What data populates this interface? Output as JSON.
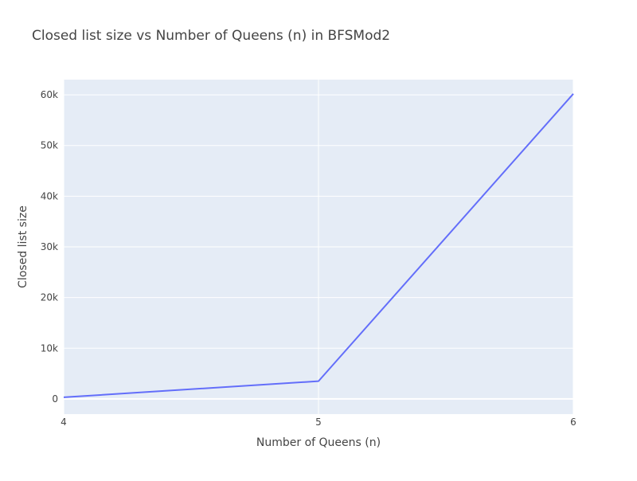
{
  "chart_data": {
    "type": "line",
    "title": "Closed list size vs Number of Queens (n) in BFSMod2",
    "xlabel": "Number of Queens (n)",
    "ylabel": "Closed list size",
    "x": [
      4,
      5,
      6
    ],
    "series": [
      {
        "values": [
          320,
          3500,
          60200
        ]
      }
    ],
    "xlim": [
      4,
      6
    ],
    "ylim": [
      -3000,
      63000
    ],
    "x_ticks": [
      4,
      5,
      6
    ],
    "x_tick_labels": [
      "4",
      "5",
      "6"
    ],
    "y_ticks": [
      0,
      10000,
      20000,
      30000,
      40000,
      50000,
      60000
    ],
    "y_tick_labels": [
      "0",
      "10k",
      "20k",
      "30k",
      "40k",
      "50k",
      "60k"
    ],
    "grid": true,
    "colors": {
      "plot_background": "#e5ecf6",
      "gridline": "#ffffff",
      "line": "#636efa",
      "text": "#444444"
    }
  }
}
